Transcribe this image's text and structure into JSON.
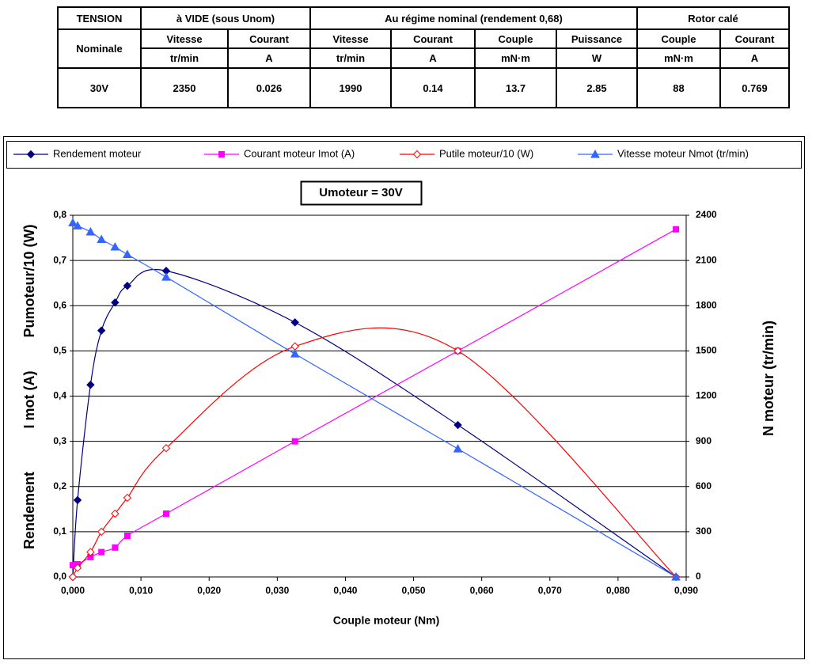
{
  "table": {
    "header_row_1": [
      "TENSION",
      "à VIDE (sous Unom)",
      "Au régime nominal (rendement 0,68)",
      "Rotor calé"
    ],
    "header_row_2": [
      "Nominale",
      "Vitesse",
      "Courant",
      "Vitesse",
      "Courant",
      "Couple",
      "Puissance",
      "Couple",
      "Courant"
    ],
    "units": [
      "tr/min",
      "A",
      "tr/min",
      "A",
      "mN·m",
      "W",
      "mN·m",
      "A"
    ],
    "rows": [
      [
        "30V",
        "2350",
        "0.026",
        "1990",
        "0.14",
        "13.7",
        "2.85",
        "88",
        "0.769"
      ]
    ]
  },
  "chart_data": {
    "type": "line",
    "annotation": "Umoteur = 30V",
    "x_label": "Couple moteur (Nm)",
    "y_labels": [
      "Rendement",
      "I mot (A)",
      "Pumoteur/10 (W)"
    ],
    "y2_label": "N moteur (tr/min)",
    "x": [
      0,
      0.0007,
      0.0026,
      0.0042,
      0.0062,
      0.008,
      0.0137,
      0.0326,
      0.0565,
      0.0885
    ],
    "series": [
      {
        "name": "Rendement moteur",
        "color": "#000080",
        "marker": "diamond",
        "values": [
          0,
          0.17,
          0.425,
          0.545,
          0.607,
          0.644,
          0.677,
          0.563,
          0.336,
          0
        ]
      },
      {
        "name": "Courant moteur Imot (A)",
        "color": "#ff00ff",
        "marker": "square",
        "values": [
          0.026,
          0.028,
          0.044,
          0.055,
          0.065,
          0.091,
          0.14,
          0.3,
          0.5,
          0.769
        ]
      },
      {
        "name": "Putile moteur/10 (W)",
        "color": "#ff0000",
        "marker": "open-diamond",
        "values": [
          0,
          0.02,
          0.055,
          0.1,
          0.14,
          0.175,
          0.285,
          0.51,
          0.5,
          0
        ]
      },
      {
        "name": "Vitesse moteur Nmot (tr/min)",
        "color": "#3366ff",
        "marker": "triangle",
        "axis": "y2",
        "values": [
          2350,
          2330,
          2290,
          2240,
          2190,
          2140,
          1990,
          1480,
          850,
          0
        ]
      }
    ],
    "xlim": [
      0,
      0.09
    ],
    "xticks": [
      {
        "value": 0,
        "label": "0,000"
      },
      {
        "value": 0.01,
        "label": "0,010"
      },
      {
        "value": 0.02,
        "label": "0,020"
      },
      {
        "value": 0.03,
        "label": "0,030"
      },
      {
        "value": 0.04,
        "label": "0,040"
      },
      {
        "value": 0.05,
        "label": "0,050"
      },
      {
        "value": 0.06,
        "label": "0,060"
      },
      {
        "value": 0.07,
        "label": "0,070"
      },
      {
        "value": 0.08,
        "label": "0,080"
      },
      {
        "value": 0.09,
        "label": "0,090"
      }
    ],
    "ylim": [
      0,
      0.8
    ],
    "yticks": [
      {
        "value": 0,
        "label": "0,0"
      },
      {
        "value": 0.1,
        "label": "0,1"
      },
      {
        "value": 0.2,
        "label": "0,2"
      },
      {
        "value": 0.3,
        "label": "0,3"
      },
      {
        "value": 0.4,
        "label": "0,4"
      },
      {
        "value": 0.5,
        "label": "0,5"
      },
      {
        "value": 0.6,
        "label": "0,6"
      },
      {
        "value": 0.7,
        "label": "0,7"
      },
      {
        "value": 0.8,
        "label": "0,8"
      }
    ],
    "y2lim": [
      0,
      2400
    ],
    "y2ticks": [
      0,
      300,
      600,
      900,
      1200,
      1500,
      1800,
      2100,
      2400
    ],
    "grid": true,
    "legend": "top"
  }
}
